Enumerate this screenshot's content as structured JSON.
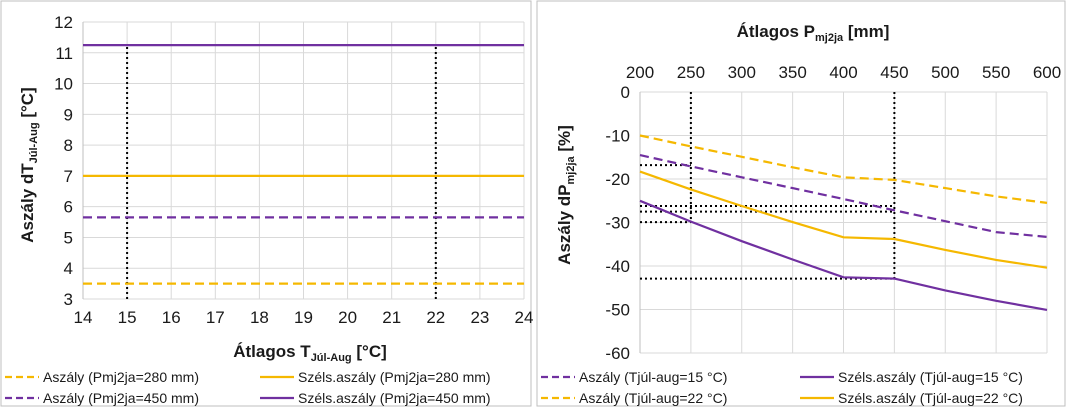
{
  "chart_data": [
    {
      "type": "line",
      "title": "",
      "xlabel": "Átlagos T",
      "xlabel_sub": "Júl-Aug",
      "xlabel_unit": " [°C]",
      "ylabel": "Aszály dT",
      "ylabel_sub": "Júl-Aug",
      "ylabel_unit": " [°C]",
      "xlim": [
        14,
        24
      ],
      "ylim": [
        3,
        12
      ],
      "xticks": [
        14,
        15,
        16,
        17,
        18,
        19,
        20,
        21,
        22,
        23,
        24
      ],
      "yticks": [
        3,
        4,
        5,
        6,
        7,
        8,
        9,
        10,
        11,
        12
      ],
      "grid": true,
      "legend_position": "bottom",
      "x": [
        14,
        24
      ],
      "series": [
        {
          "name": "Aszály (Pmj2ja=280 mm)",
          "color": "#f5b800",
          "dash": "dashed",
          "values": [
            3.5,
            3.5
          ]
        },
        {
          "name": "Széls.aszály (Pmj2ja=280 mm)",
          "color": "#f5b800",
          "dash": "solid",
          "values": [
            7.0,
            7.0
          ]
        },
        {
          "name": "Aszály (Pmj2ja=450 mm)",
          "color": "#7030a0",
          "dash": "dashed",
          "values": [
            5.65,
            5.65
          ]
        },
        {
          "name": "Széls.aszály (Pmj2ja=450 mm)",
          "color": "#7030a0",
          "dash": "solid",
          "values": [
            11.25,
            11.25
          ]
        }
      ],
      "reference_lines": [
        {
          "x": [
            15,
            15
          ],
          "y": [
            3,
            11.25
          ]
        },
        {
          "x": [
            22,
            22
          ],
          "y": [
            3,
            11.25
          ]
        }
      ]
    },
    {
      "type": "line",
      "title": "",
      "xlabel": "Átlagos P",
      "xlabel_sub": "mj2ja",
      "xlabel_unit": " [mm]",
      "xaxis_position": "top",
      "ylabel": "Aszály dP",
      "ylabel_sub": "mj2ja",
      "ylabel_unit": " [%]",
      "xlim": [
        200,
        600
      ],
      "ylim": [
        -60,
        0
      ],
      "xticks": [
        200,
        250,
        300,
        350,
        400,
        450,
        500,
        550,
        600
      ],
      "yticks": [
        0,
        -10,
        -20,
        -30,
        -40,
        -50,
        -60
      ],
      "grid": true,
      "legend_position": "bottom",
      "x": [
        200,
        250,
        300,
        350,
        400,
        450,
        500,
        550,
        600
      ],
      "series": [
        {
          "name": "Aszály (Tjúl-aug=15 °C)",
          "color": "#7030a0",
          "dash": "dashed",
          "values": [
            -14.5,
            -17.1,
            -19.6,
            -22.1,
            -24.6,
            -27.2,
            -29.7,
            -32.2,
            -33.3
          ]
        },
        {
          "name": "Széls.aszály (Tjúl-aug=15 °C)",
          "color": "#7030a0",
          "dash": "solid",
          "values": [
            -25.0,
            -29.8,
            -34.3,
            -38.5,
            -42.6,
            -42.9,
            -45.6,
            -48.0,
            -50.1
          ]
        },
        {
          "name": "Aszály (Tjúl-aug=22 °C)",
          "color": "#f5b800",
          "dash": "dashed",
          "values": [
            -10.0,
            -12.5,
            -14.9,
            -17.3,
            -19.6,
            -20.2,
            -22.1,
            -24.0,
            -25.5
          ]
        },
        {
          "name": "Széls.aszály (Tjúl-aug=22 °C)",
          "color": "#f5b800",
          "dash": "solid",
          "values": [
            -18.3,
            -22.4,
            -26.2,
            -29.9,
            -33.4,
            -33.8,
            -36.3,
            -38.6,
            -40.4
          ]
        }
      ],
      "reference_lines": [
        {
          "x": [
            250,
            250
          ],
          "y": [
            0,
            -29.9
          ]
        },
        {
          "x": [
            450,
            450
          ],
          "y": [
            0,
            -42.9
          ]
        },
        {
          "x": [
            200,
            250
          ],
          "y": [
            -16.8,
            -16.8
          ]
        },
        {
          "x": [
            200,
            450
          ],
          "y": [
            -26.2,
            -26.2
          ]
        },
        {
          "x": [
            200,
            450
          ],
          "y": [
            -27.5,
            -27.5
          ]
        },
        {
          "x": [
            200,
            250
          ],
          "y": [
            -29.9,
            -29.9
          ]
        },
        {
          "x": [
            200,
            450
          ],
          "y": [
            -42.9,
            -42.9
          ]
        }
      ]
    }
  ]
}
